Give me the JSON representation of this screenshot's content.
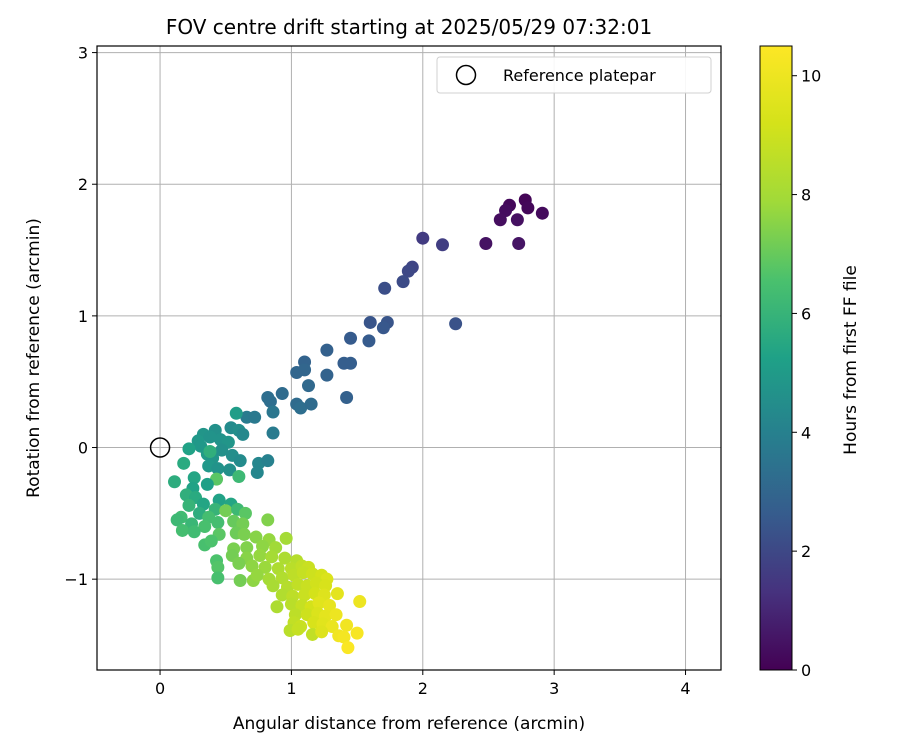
{
  "chart_data": {
    "type": "scatter",
    "title": "FOV centre drift starting at 2025/05/29 07:32:01",
    "xlabel": "Angular distance from reference (arcmin)",
    "ylabel": "Rotation from reference (arcmin)",
    "xlim": [
      -0.48,
      4.27
    ],
    "ylim": [
      -1.69,
      3.05
    ],
    "xticks": [
      0,
      1,
      2,
      3,
      4
    ],
    "yticks": [
      -1,
      0,
      1,
      2,
      3
    ],
    "xtick_labels": [
      "0",
      "1",
      "2",
      "3",
      "4"
    ],
    "ytick_labels": [
      "−1",
      "0",
      "1",
      "2",
      "3"
    ],
    "grid": true,
    "legend": {
      "position": "top-right",
      "label": "Reference platepar",
      "marker": "open-circle"
    },
    "reference_point": {
      "x": 0,
      "y": 0
    },
    "colorbar": {
      "label": "Hours from first FF file",
      "colormap": "viridis",
      "range": [
        0,
        10.5
      ],
      "ticks": [
        0,
        2,
        4,
        6,
        8,
        10
      ],
      "tick_labels": [
        "0",
        "2",
        "4",
        "6",
        "8",
        "10"
      ]
    },
    "points": [
      {
        "x": 2.78,
        "y": 1.88,
        "t": 0.1
      },
      {
        "x": 2.66,
        "y": 1.84,
        "t": 0.2
      },
      {
        "x": 2.63,
        "y": 1.8,
        "t": 0.3
      },
      {
        "x": 2.8,
        "y": 1.82,
        "t": 0.15
      },
      {
        "x": 2.91,
        "y": 1.78,
        "t": 0.25
      },
      {
        "x": 2.59,
        "y": 1.73,
        "t": 0.35
      },
      {
        "x": 2.72,
        "y": 1.73,
        "t": 0.4
      },
      {
        "x": 2.48,
        "y": 1.55,
        "t": 0.45
      },
      {
        "x": 2.73,
        "y": 1.55,
        "t": 0.5
      },
      {
        "x": 2.0,
        "y": 1.59,
        "t": 1.6
      },
      {
        "x": 2.15,
        "y": 1.54,
        "t": 1.7
      },
      {
        "x": 1.92,
        "y": 1.37,
        "t": 1.9
      },
      {
        "x": 1.89,
        "y": 1.34,
        "t": 2.0
      },
      {
        "x": 1.85,
        "y": 1.26,
        "t": 2.1
      },
      {
        "x": 1.71,
        "y": 1.21,
        "t": 2.2
      },
      {
        "x": 1.6,
        "y": 0.95,
        "t": 2.4
      },
      {
        "x": 1.73,
        "y": 0.95,
        "t": 2.4
      },
      {
        "x": 1.7,
        "y": 0.91,
        "t": 2.5
      },
      {
        "x": 2.25,
        "y": 0.94,
        "t": 2.3
      },
      {
        "x": 1.45,
        "y": 0.83,
        "t": 2.6
      },
      {
        "x": 1.59,
        "y": 0.81,
        "t": 2.6
      },
      {
        "x": 1.27,
        "y": 0.74,
        "t": 2.8
      },
      {
        "x": 1.1,
        "y": 0.65,
        "t": 2.9
      },
      {
        "x": 1.45,
        "y": 0.64,
        "t": 2.7
      },
      {
        "x": 1.4,
        "y": 0.64,
        "t": 2.7
      },
      {
        "x": 1.04,
        "y": 0.57,
        "t": 3.0
      },
      {
        "x": 1.1,
        "y": 0.59,
        "t": 3.0
      },
      {
        "x": 1.27,
        "y": 0.55,
        "t": 2.9
      },
      {
        "x": 1.13,
        "y": 0.47,
        "t": 3.1
      },
      {
        "x": 0.93,
        "y": 0.41,
        "t": 3.2
      },
      {
        "x": 0.82,
        "y": 0.38,
        "t": 3.3
      },
      {
        "x": 0.84,
        "y": 0.35,
        "t": 3.3
      },
      {
        "x": 1.42,
        "y": 0.38,
        "t": 2.8
      },
      {
        "x": 1.04,
        "y": 0.33,
        "t": 3.2
      },
      {
        "x": 1.07,
        "y": 0.3,
        "t": 3.3
      },
      {
        "x": 1.15,
        "y": 0.33,
        "t": 3.2
      },
      {
        "x": 0.86,
        "y": 0.27,
        "t": 3.6
      },
      {
        "x": 0.66,
        "y": 0.23,
        "t": 3.8
      },
      {
        "x": 0.72,
        "y": 0.23,
        "t": 3.7
      },
      {
        "x": 0.58,
        "y": 0.26,
        "t": 5.1
      },
      {
        "x": 0.54,
        "y": 0.15,
        "t": 4.4
      },
      {
        "x": 0.6,
        "y": 0.13,
        "t": 4.5
      },
      {
        "x": 0.86,
        "y": 0.11,
        "t": 3.8
      },
      {
        "x": 0.63,
        "y": 0.1,
        "t": 4.3
      },
      {
        "x": 0.42,
        "y": 0.13,
        "t": 4.6
      },
      {
        "x": 0.33,
        "y": 0.1,
        "t": 4.8
      },
      {
        "x": 0.29,
        "y": 0.05,
        "t": 4.9
      },
      {
        "x": 0.38,
        "y": 0.08,
        "t": 4.7
      },
      {
        "x": 0.46,
        "y": 0.06,
        "t": 4.7
      },
      {
        "x": 0.52,
        "y": 0.04,
        "t": 4.8
      },
      {
        "x": 0.31,
        "y": 0.01,
        "t": 4.9
      },
      {
        "x": 0.22,
        "y": -0.01,
        "t": 5.3
      },
      {
        "x": 0.36,
        "y": -0.05,
        "t": 5.0
      },
      {
        "x": 0.4,
        "y": -0.08,
        "t": 4.8
      },
      {
        "x": 0.47,
        "y": -0.02,
        "t": 4.6
      },
      {
        "x": 0.55,
        "y": -0.06,
        "t": 4.5
      },
      {
        "x": 0.61,
        "y": -0.1,
        "t": 4.4
      },
      {
        "x": 0.18,
        "y": -0.12,
        "t": 5.6
      },
      {
        "x": 0.37,
        "y": -0.14,
        "t": 4.9
      },
      {
        "x": 0.44,
        "y": -0.16,
        "t": 4.7
      },
      {
        "x": 0.53,
        "y": -0.17,
        "t": 4.6
      },
      {
        "x": 0.75,
        "y": -0.12,
        "t": 4.2
      },
      {
        "x": 0.74,
        "y": -0.19,
        "t": 4.2
      },
      {
        "x": 0.82,
        "y": -0.1,
        "t": 4.0
      },
      {
        "x": 0.38,
        "y": -0.03,
        "t": 5.8
      },
      {
        "x": 0.6,
        "y": -0.22,
        "t": 6.2
      },
      {
        "x": 0.26,
        "y": -0.23,
        "t": 5.4
      },
      {
        "x": 0.43,
        "y": -0.24,
        "t": 6.8
      },
      {
        "x": 0.36,
        "y": -0.28,
        "t": 5.2
      },
      {
        "x": 0.25,
        "y": -0.31,
        "t": 5.3
      },
      {
        "x": 0.11,
        "y": -0.26,
        "t": 5.7
      },
      {
        "x": 0.2,
        "y": -0.36,
        "t": 5.8
      },
      {
        "x": 0.27,
        "y": -0.38,
        "t": 5.6
      },
      {
        "x": 0.33,
        "y": -0.43,
        "t": 5.4
      },
      {
        "x": 0.45,
        "y": -0.4,
        "t": 5.3
      },
      {
        "x": 0.54,
        "y": -0.43,
        "t": 5.4
      },
      {
        "x": 0.22,
        "y": -0.44,
        "t": 6.0
      },
      {
        "x": 0.3,
        "y": -0.5,
        "t": 5.7
      },
      {
        "x": 0.42,
        "y": -0.47,
        "t": 6.0
      },
      {
        "x": 0.5,
        "y": -0.48,
        "t": 7.2
      },
      {
        "x": 0.59,
        "y": -0.47,
        "t": 6.2
      },
      {
        "x": 0.65,
        "y": -0.5,
        "t": 6.8
      },
      {
        "x": 0.37,
        "y": -0.53,
        "t": 6.4
      },
      {
        "x": 0.16,
        "y": -0.53,
        "t": 6.3
      },
      {
        "x": 0.13,
        "y": -0.55,
        "t": 6.2
      },
      {
        "x": 0.24,
        "y": -0.58,
        "t": 6.1
      },
      {
        "x": 0.34,
        "y": -0.6,
        "t": 6.5
      },
      {
        "x": 0.44,
        "y": -0.57,
        "t": 6.4
      },
      {
        "x": 0.56,
        "y": -0.56,
        "t": 7.0
      },
      {
        "x": 0.63,
        "y": -0.58,
        "t": 7.2
      },
      {
        "x": 0.82,
        "y": -0.55,
        "t": 7.4
      },
      {
        "x": 0.17,
        "y": -0.63,
        "t": 6.4
      },
      {
        "x": 0.26,
        "y": -0.64,
        "t": 6.3
      },
      {
        "x": 0.45,
        "y": -0.66,
        "t": 6.8
      },
      {
        "x": 0.58,
        "y": -0.65,
        "t": 7.1
      },
      {
        "x": 0.64,
        "y": -0.66,
        "t": 7.3
      },
      {
        "x": 0.73,
        "y": -0.68,
        "t": 7.5
      },
      {
        "x": 0.83,
        "y": -0.7,
        "t": 7.7
      },
      {
        "x": 0.96,
        "y": -0.69,
        "t": 8.0
      },
      {
        "x": 0.34,
        "y": -0.74,
        "t": 6.5
      },
      {
        "x": 0.39,
        "y": -0.71,
        "t": 6.6
      },
      {
        "x": 0.56,
        "y": -0.77,
        "t": 7.3
      },
      {
        "x": 0.66,
        "y": -0.76,
        "t": 7.4
      },
      {
        "x": 0.78,
        "y": -0.75,
        "t": 7.6
      },
      {
        "x": 0.88,
        "y": -0.76,
        "t": 7.9
      },
      {
        "x": 0.55,
        "y": -0.82,
        "t": 7.2
      },
      {
        "x": 0.66,
        "y": -0.84,
        "t": 7.5
      },
      {
        "x": 0.76,
        "y": -0.82,
        "t": 7.7
      },
      {
        "x": 0.85,
        "y": -0.83,
        "t": 8.0
      },
      {
        "x": 0.95,
        "y": -0.84,
        "t": 8.2
      },
      {
        "x": 1.04,
        "y": -0.86,
        "t": 8.4
      },
      {
        "x": 0.43,
        "y": -0.86,
        "t": 6.6
      },
      {
        "x": 0.44,
        "y": -0.91,
        "t": 6.7
      },
      {
        "x": 0.6,
        "y": -0.88,
        "t": 7.3
      },
      {
        "x": 0.7,
        "y": -0.9,
        "t": 7.6
      },
      {
        "x": 0.8,
        "y": -0.91,
        "t": 7.8
      },
      {
        "x": 0.9,
        "y": -0.92,
        "t": 8.2
      },
      {
        "x": 1.0,
        "y": -0.92,
        "t": 8.5
      },
      {
        "x": 1.08,
        "y": -0.9,
        "t": 8.7
      },
      {
        "x": 1.13,
        "y": -0.91,
        "t": 8.9
      },
      {
        "x": 0.44,
        "y": -0.99,
        "t": 6.5
      },
      {
        "x": 0.61,
        "y": -1.01,
        "t": 7.2
      },
      {
        "x": 0.71,
        "y": -1.01,
        "t": 7.6
      },
      {
        "x": 0.74,
        "y": -0.97,
        "t": 7.7
      },
      {
        "x": 0.83,
        "y": -1.0,
        "t": 8.0
      },
      {
        "x": 0.93,
        "y": -0.99,
        "t": 8.3
      },
      {
        "x": 1.02,
        "y": -0.97,
        "t": 8.6
      },
      {
        "x": 1.09,
        "y": -0.95,
        "t": 8.8
      },
      {
        "x": 1.16,
        "y": -0.96,
        "t": 9.0
      },
      {
        "x": 1.23,
        "y": -0.97,
        "t": 9.2
      },
      {
        "x": 1.27,
        "y": -1.0,
        "t": 9.4
      },
      {
        "x": 0.86,
        "y": -1.05,
        "t": 8.1
      },
      {
        "x": 0.97,
        "y": -1.06,
        "t": 8.4
      },
      {
        "x": 1.05,
        "y": -1.04,
        "t": 8.7
      },
      {
        "x": 1.12,
        "y": -1.05,
        "t": 8.9
      },
      {
        "x": 1.19,
        "y": -1.03,
        "t": 9.1
      },
      {
        "x": 1.26,
        "y": -1.05,
        "t": 9.3
      },
      {
        "x": 0.93,
        "y": -1.12,
        "t": 8.3
      },
      {
        "x": 1.01,
        "y": -1.13,
        "t": 8.6
      },
      {
        "x": 1.1,
        "y": -1.12,
        "t": 8.9
      },
      {
        "x": 1.18,
        "y": -1.11,
        "t": 9.2
      },
      {
        "x": 1.25,
        "y": -1.12,
        "t": 9.5
      },
      {
        "x": 1.35,
        "y": -1.11,
        "t": 9.7
      },
      {
        "x": 1.52,
        "y": -1.17,
        "t": 10.0
      },
      {
        "x": 0.89,
        "y": -1.21,
        "t": 8.2
      },
      {
        "x": 1.0,
        "y": -1.19,
        "t": 8.5
      },
      {
        "x": 1.08,
        "y": -1.2,
        "t": 8.8
      },
      {
        "x": 1.15,
        "y": -1.21,
        "t": 9.2
      },
      {
        "x": 1.21,
        "y": -1.18,
        "t": 9.6
      },
      {
        "x": 1.29,
        "y": -1.2,
        "t": 9.8
      },
      {
        "x": 1.03,
        "y": -1.27,
        "t": 8.6
      },
      {
        "x": 1.12,
        "y": -1.27,
        "t": 9.0
      },
      {
        "x": 1.2,
        "y": -1.26,
        "t": 9.4
      },
      {
        "x": 1.26,
        "y": -1.28,
        "t": 9.7
      },
      {
        "x": 1.34,
        "y": -1.27,
        "t": 10.0
      },
      {
        "x": 1.02,
        "y": -1.33,
        "t": 8.7
      },
      {
        "x": 1.07,
        "y": -1.36,
        "t": 8.9
      },
      {
        "x": 1.17,
        "y": -1.33,
        "t": 9.3
      },
      {
        "x": 1.24,
        "y": -1.34,
        "t": 9.6
      },
      {
        "x": 1.31,
        "y": -1.36,
        "t": 9.9
      },
      {
        "x": 1.42,
        "y": -1.35,
        "t": 10.1
      },
      {
        "x": 0.99,
        "y": -1.39,
        "t": 8.5
      },
      {
        "x": 1.05,
        "y": -1.38,
        "t": 8.8
      },
      {
        "x": 1.16,
        "y": -1.42,
        "t": 8.7
      },
      {
        "x": 1.23,
        "y": -1.4,
        "t": 9.5
      },
      {
        "x": 1.36,
        "y": -1.43,
        "t": 10.1
      },
      {
        "x": 1.4,
        "y": -1.44,
        "t": 10.2
      },
      {
        "x": 1.5,
        "y": -1.41,
        "t": 10.3
      },
      {
        "x": 1.43,
        "y": -1.52,
        "t": 10.4
      }
    ]
  }
}
